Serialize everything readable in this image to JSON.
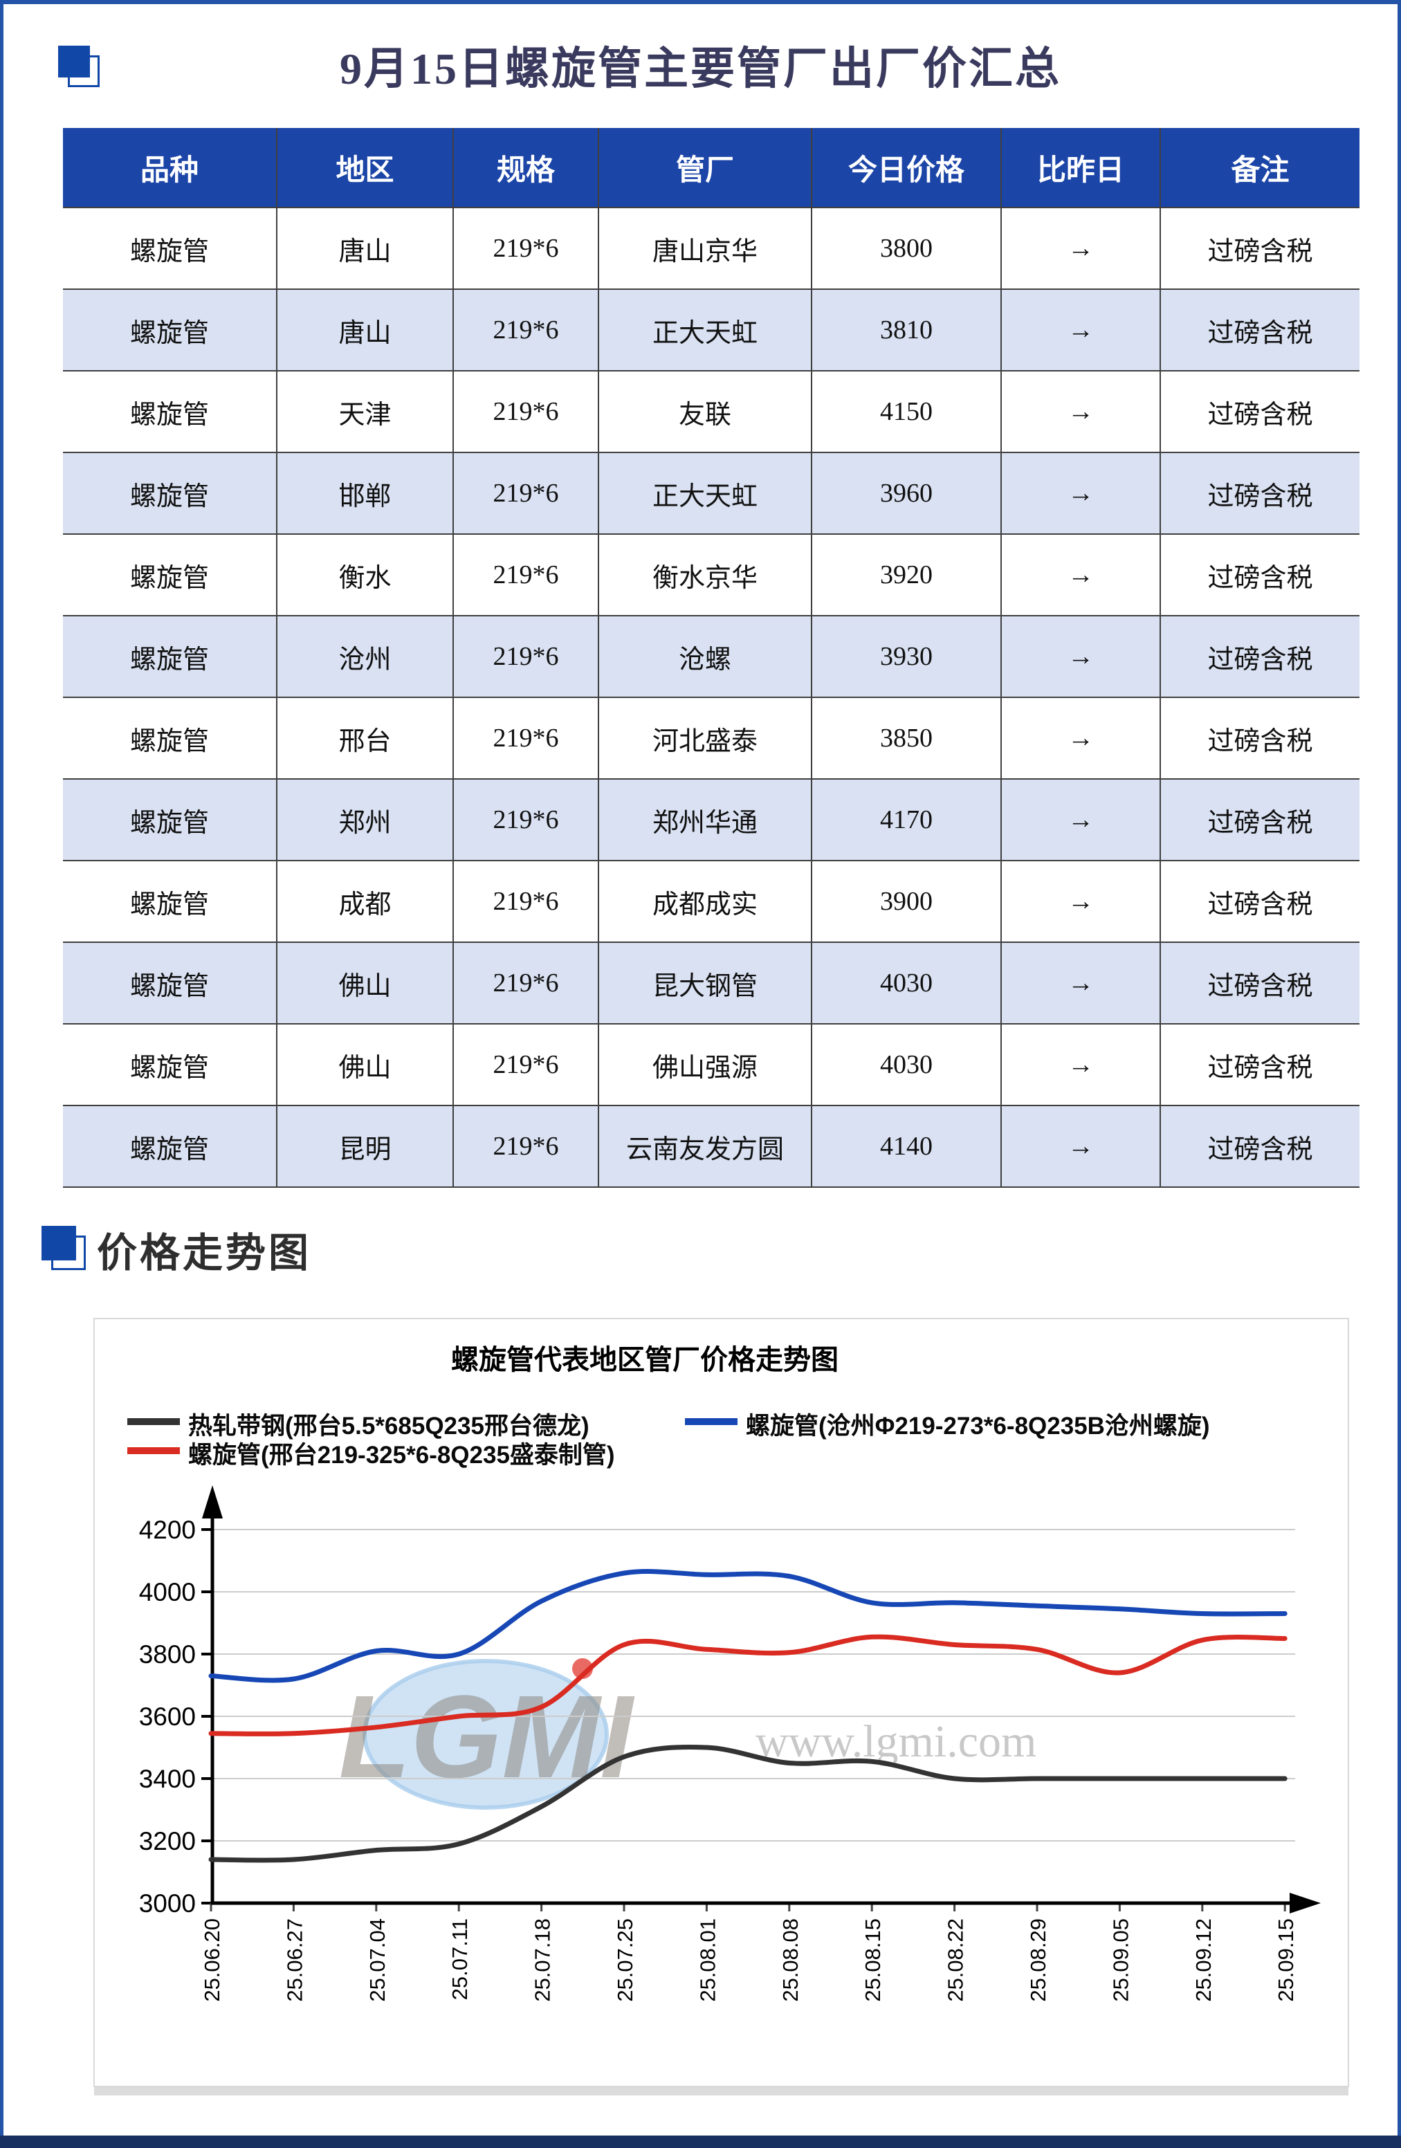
{
  "page": {
    "title": "9月15日螺旋管主要管厂出厂价汇总",
    "section2_title": "价格走势图",
    "accent_color": "#1148A8",
    "border_color": "#2454A8",
    "bottom_bar_color": "#17305F"
  },
  "table": {
    "header_bg": "#1C45A8",
    "alt_row_bg": "#D9E1F2",
    "headers": [
      "品种",
      "地区",
      "规格",
      "管厂",
      "今日价格",
      "比昨日",
      "备注"
    ],
    "rows": [
      {
        "variety": "螺旋管",
        "region": "唐山",
        "spec": "219*6",
        "factory": "唐山京华",
        "price": "3800",
        "change": "→",
        "note": "过磅含税"
      },
      {
        "variety": "螺旋管",
        "region": "唐山",
        "spec": "219*6",
        "factory": "正大天虹",
        "price": "3810",
        "change": "→",
        "note": "过磅含税"
      },
      {
        "variety": "螺旋管",
        "region": "天津",
        "spec": "219*6",
        "factory": "友联",
        "price": "4150",
        "change": "→",
        "note": "过磅含税"
      },
      {
        "variety": "螺旋管",
        "region": "邯郸",
        "spec": "219*6",
        "factory": "正大天虹",
        "price": "3960",
        "change": "→",
        "note": "过磅含税"
      },
      {
        "variety": "螺旋管",
        "region": "衡水",
        "spec": "219*6",
        "factory": "衡水京华",
        "price": "3920",
        "change": "→",
        "note": "过磅含税"
      },
      {
        "variety": "螺旋管",
        "region": "沧州",
        "spec": "219*6",
        "factory": "沧螺",
        "price": "3930",
        "change": "→",
        "note": "过磅含税"
      },
      {
        "variety": "螺旋管",
        "region": "邢台",
        "spec": "219*6",
        "factory": "河北盛泰",
        "price": "3850",
        "change": "→",
        "note": "过磅含税"
      },
      {
        "variety": "螺旋管",
        "region": "郑州",
        "spec": "219*6",
        "factory": "郑州华通",
        "price": "4170",
        "change": "→",
        "note": "过磅含税"
      },
      {
        "variety": "螺旋管",
        "region": "成都",
        "spec": "219*6",
        "factory": "成都成实",
        "price": "3900",
        "change": "→",
        "note": "过磅含税"
      },
      {
        "variety": "螺旋管",
        "region": "佛山",
        "spec": "219*6",
        "factory": "昆大钢管",
        "price": "4030",
        "change": "→",
        "note": "过磅含税"
      },
      {
        "variety": "螺旋管",
        "region": "佛山",
        "spec": "219*6",
        "factory": "佛山强源",
        "price": "4030",
        "change": "→",
        "note": "过磅含税"
      },
      {
        "variety": "螺旋管",
        "region": "昆明",
        "spec": "219*6",
        "factory": "云南友发方圆",
        "price": "4140",
        "change": "→",
        "note": "过磅含税"
      }
    ]
  },
  "chart_data": {
    "type": "line",
    "title": "螺旋管代表地区管厂价格走势图",
    "ylim": [
      3000,
      4200
    ],
    "ytick_step": 200,
    "yticks": [
      3000,
      3200,
      3400,
      3600,
      3800,
      4000,
      4200
    ],
    "grid": true,
    "legend_position": "top",
    "x_labels": [
      "25.06.20",
      "25.06.27",
      "25.07.04",
      "25.07.11",
      "25.07.18",
      "25.07.25",
      "25.08.01",
      "25.08.08",
      "25.08.15",
      "25.08.22",
      "25.08.29",
      "25.09.05",
      "25.09.12",
      "25.09.15"
    ],
    "series": [
      {
        "name": "热轧带钢(邢台5.5*685Q235邢台德龙)",
        "color": "#333333",
        "values": [
          3140,
          3140,
          3170,
          3190,
          3310,
          3470,
          3500,
          3450,
          3455,
          3400,
          3400,
          3400,
          3400,
          3400
        ]
      },
      {
        "name": "螺旋管(沧州Φ219-273*6-8Q235B沧州螺旋)",
        "color": "#1647B5",
        "values": [
          3730,
          3720,
          3810,
          3800,
          3970,
          4060,
          4055,
          4050,
          3965,
          3965,
          3955,
          3945,
          3930,
          3930
        ]
      },
      {
        "name": "螺旋管(邢台219-325*6-8Q235盛泰制管)",
        "color": "#D92B21",
        "values": [
          3545,
          3545,
          3565,
          3600,
          3630,
          3830,
          3815,
          3805,
          3855,
          3830,
          3815,
          3740,
          3845,
          3850
        ]
      }
    ],
    "watermark": {
      "logo_text": "LGMI",
      "url_text": "www.lgmi.com"
    },
    "colors": {
      "gridline": "#CCCCCC",
      "axis": "#000000",
      "watermark_text": "#C6C6C6",
      "watermark_ellipse": "#A8CCEC"
    }
  }
}
